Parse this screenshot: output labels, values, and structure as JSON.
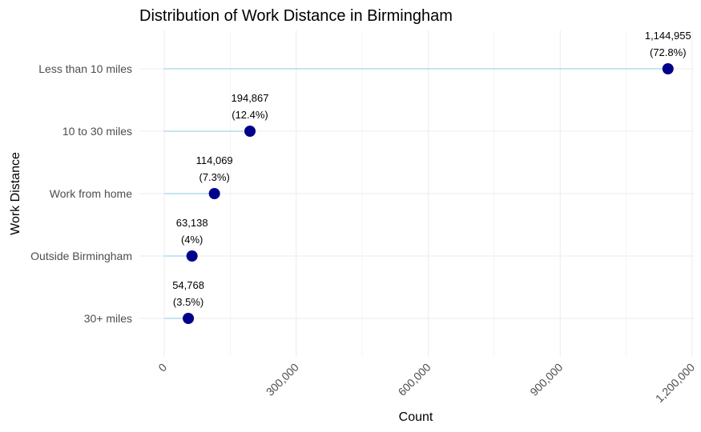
{
  "chart_data": {
    "type": "lollipop",
    "title": "Distribution of Work Distance in Birmingham",
    "xlabel": "Count",
    "ylabel": "Work Distance",
    "xlim": [
      0,
      1200000
    ],
    "x_ticks": [
      0,
      300000,
      600000,
      900000,
      1200000
    ],
    "x_tick_labels": [
      "0",
      "300,000",
      "600,000",
      "900,000",
      "1,200,000"
    ],
    "grid": true,
    "point_color": "#00008b",
    "stem_color": "#87cddc",
    "categories": [
      "Less than 10 miles",
      "10 to 30 miles",
      "Work from home",
      "Outside Birmingham",
      "30+ miles"
    ],
    "values": [
      1144955,
      194867,
      114069,
      63138,
      54768
    ],
    "value_labels": [
      "1,144,955",
      "194,867",
      "114,069",
      "63,138",
      "54,768"
    ],
    "percent_labels": [
      "(72.8%)",
      "(12.4%)",
      "(7.3%)",
      "(4%)",
      "(3.5%)"
    ]
  }
}
